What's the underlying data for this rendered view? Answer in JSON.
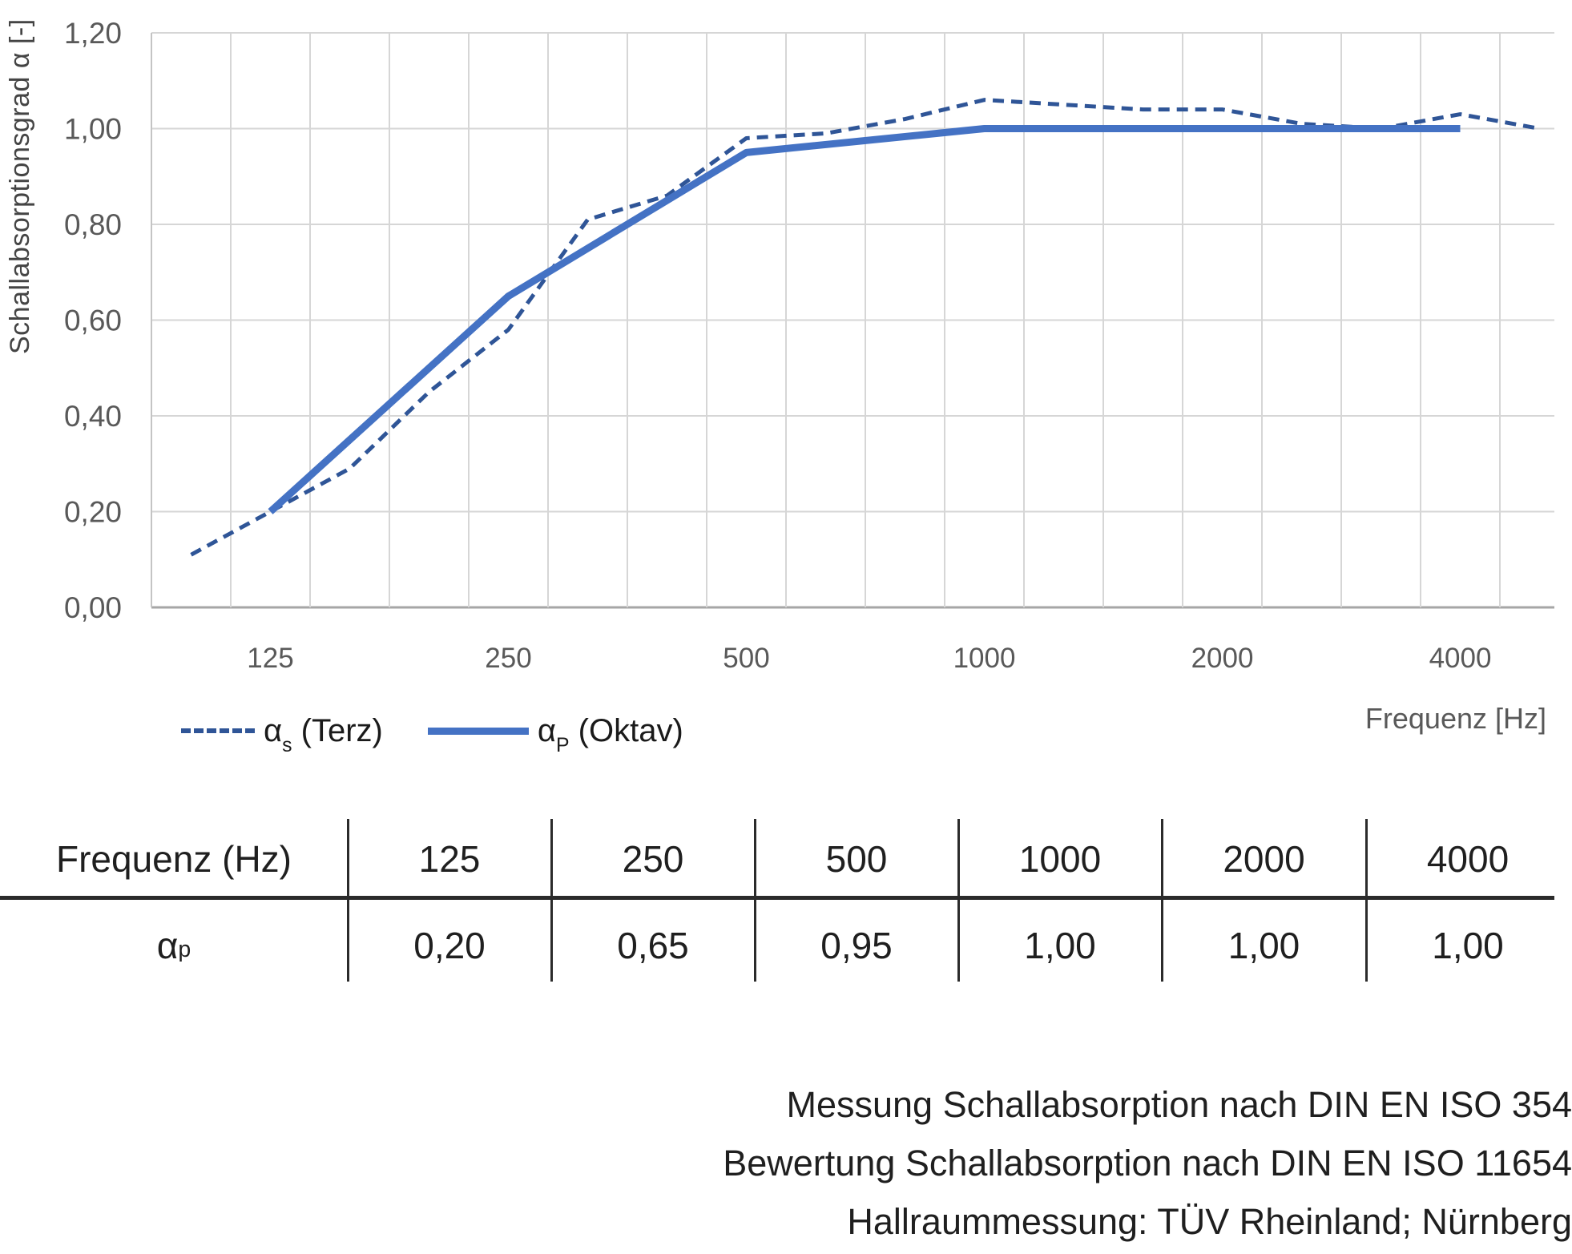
{
  "chart_data": {
    "type": "line",
    "title": "",
    "xlabel": "Frequenz [Hz]",
    "ylabel": "Schallabsorptionsgrad α [-]",
    "ylim": [
      0,
      1.2
    ],
    "ytick_step": 0.2,
    "ytick_labels": [
      "0,00",
      "0,20",
      "0,40",
      "0,60",
      "0,80",
      "1,00",
      "1,20"
    ],
    "x_categories": [
      100,
      125,
      160,
      200,
      250,
      315,
      400,
      500,
      630,
      800,
      1000,
      1250,
      1600,
      2000,
      2500,
      3150,
      4000,
      5000
    ],
    "x_axis_labels": [
      125,
      250,
      500,
      1000,
      2000,
      4000
    ],
    "grid": true,
    "legend_position": "bottom-left",
    "series": [
      {
        "name": "αs (Terz)",
        "style": "dashed",
        "color": "#2F5597",
        "x": [
          100,
          125,
          160,
          200,
          250,
          315,
          400,
          500,
          630,
          800,
          1000,
          1250,
          1600,
          2000,
          2500,
          3150,
          4000,
          5000
        ],
        "values": [
          0.11,
          0.2,
          0.29,
          0.45,
          0.58,
          0.81,
          0.86,
          0.98,
          0.99,
          1.02,
          1.06,
          1.05,
          1.04,
          1.04,
          1.01,
          1.0,
          1.03,
          1.0
        ]
      },
      {
        "name": "αP (Oktav)",
        "style": "solid",
        "color": "#4472C4",
        "x": [
          125,
          250,
          500,
          1000,
          2000,
          4000
        ],
        "values": [
          0.2,
          0.65,
          0.95,
          1.0,
          1.0,
          1.0
        ]
      }
    ]
  },
  "colors": {
    "solid_line": "#4472C4",
    "dashed_line": "#2F5597",
    "grid": "#D6D6D6",
    "axis": "#A6A6A6",
    "tick_text": "#595959",
    "table_line": "#2B2B2B",
    "text": "#1F1F1F"
  },
  "legend": {
    "terz": {
      "alpha": "α",
      "sub": "s",
      "rest": " (Terz)"
    },
    "oktav": {
      "alpha": "α",
      "sub": "P",
      "rest": " (Oktav)"
    }
  },
  "table": {
    "header": {
      "label": "Frequenz (Hz)",
      "cols": [
        "125",
        "250",
        "500",
        "1000",
        "2000",
        "4000"
      ]
    },
    "row": {
      "label_alpha": "α",
      "label_sub": "p",
      "values": [
        "0,20",
        "0,65",
        "0,95",
        "1,00",
        "1,00",
        "1,00"
      ]
    }
  },
  "footer": {
    "lines": [
      "Messung Schallabsorption nach DIN EN ISO 354",
      "Bewertung Schallabsorption nach DIN EN ISO 11654",
      "Hallraummessung: TÜV Rheinland; Nürnberg"
    ]
  }
}
